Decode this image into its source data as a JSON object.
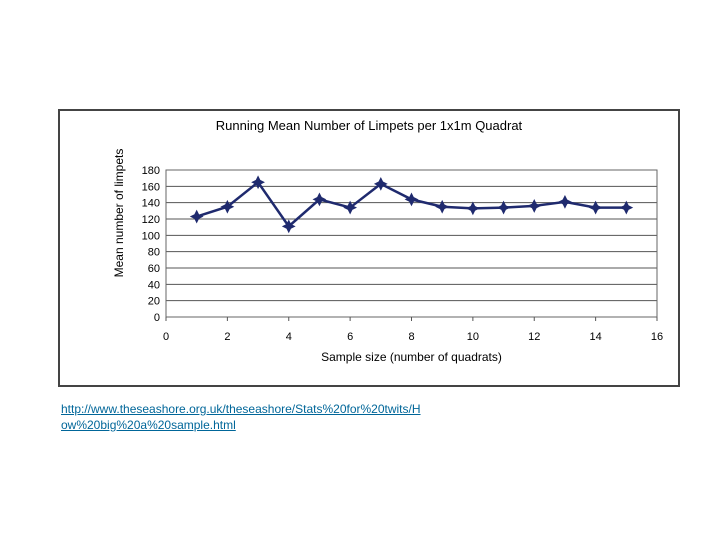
{
  "chart_data": {
    "type": "line",
    "title": "Running Mean Number of Limpets per 1x1m Quadrat",
    "xlabel": "Sample size (number of quadrats)",
    "ylabel": "Mean number of limpets",
    "xlim": [
      0,
      16
    ],
    "ylim": [
      0,
      180
    ],
    "xticks": [
      0,
      2,
      4,
      6,
      8,
      10,
      12,
      14,
      16
    ],
    "yticks": [
      0,
      20,
      40,
      60,
      80,
      100,
      120,
      140,
      160,
      180
    ],
    "grid": true,
    "legend": "none",
    "series": [
      {
        "x": [
          1,
          2,
          3,
          4,
          5,
          6,
          7,
          8,
          9,
          10,
          11,
          12,
          13,
          14,
          15
        ],
        "values": [
          123,
          135,
          165,
          111,
          144,
          134,
          163,
          144,
          135,
          133,
          134,
          136,
          141,
          134,
          134
        ],
        "color": "#1f2a6e"
      }
    ]
  },
  "source": {
    "url_text": "http://www.theseashore.org.uk/theseashore/Stats%20for%20twits/How%20big%20a%20sample.html"
  }
}
